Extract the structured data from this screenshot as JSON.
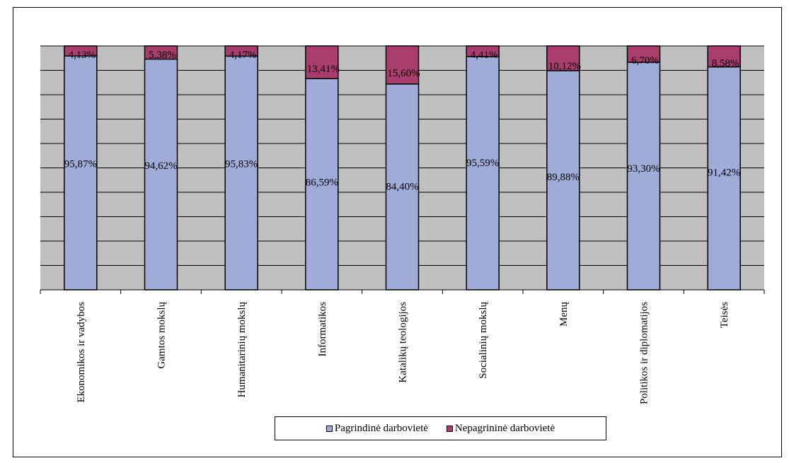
{
  "chart_data": {
    "type": "bar",
    "stacked": true,
    "categories": [
      "Ekonomikos ir vadybos",
      "Gamtos mokslų",
      "Humanitarinių mokslų",
      "Informatikos",
      "Katalikų teologijos",
      "Socialinių mokslų",
      "Menų",
      "Politikos ir diplomatijos",
      "Teisės"
    ],
    "series": [
      {
        "name": "Pagrindinė darbovietė",
        "color": "#a0acd8",
        "values": [
          95.87,
          94.62,
          95.83,
          86.59,
          84.4,
          95.59,
          89.88,
          93.3,
          91.42
        ],
        "labels": [
          "95,87%",
          "94,62%",
          "95,83%",
          "86,59%",
          "84,40%",
          "95,59%",
          "89,88%",
          "93,30%",
          "91,42%"
        ]
      },
      {
        "name": "Nepagrininė darbovietė",
        "color": "#a93d6e",
        "values": [
          4.13,
          5.38,
          4.17,
          13.41,
          15.6,
          4.41,
          10.12,
          6.7,
          8.58
        ],
        "labels": [
          "4,13%",
          "5,38%",
          "4,17%",
          "13,41%",
          "15,60%",
          "4,41%",
          "10,12%",
          "6,70%",
          "8,58%"
        ]
      }
    ],
    "ylim": [
      0,
      100
    ],
    "grid": true,
    "plot_background": "#c0c0c0",
    "legend_position": "bottom"
  }
}
